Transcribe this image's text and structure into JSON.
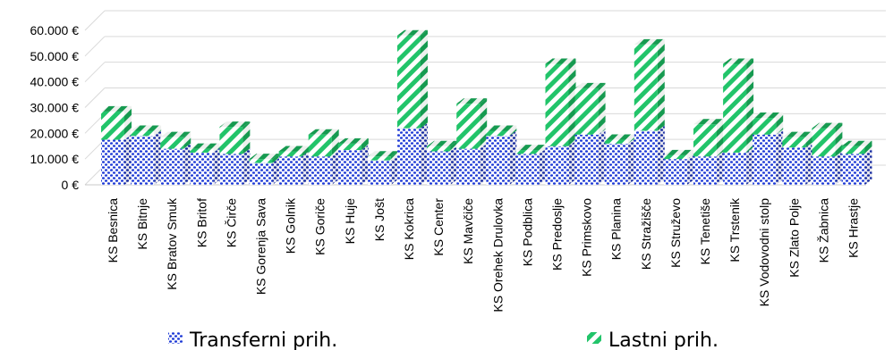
{
  "chart_data": {
    "type": "bar",
    "stacked": true,
    "three_d": true,
    "legend_position": "bottom",
    "grid": true,
    "ylim": [
      0,
      60000
    ],
    "ytick_values": [
      0,
      10000,
      20000,
      30000,
      40000,
      50000,
      60000
    ],
    "ytick_labels": [
      "0 €",
      "10.000 €",
      "20.000 €",
      "30.000 €",
      "40.000 €",
      "50.000 €",
      "60.000 €"
    ],
    "categories": [
      "KS Besnica",
      "KS Bitnje",
      "KS Bratov Smuk",
      "KS Britof",
      "KS Čirče",
      "KS Gorenja Sava",
      "KS Golnik",
      "KS Goriče",
      "KS Huje",
      "KS Jošt",
      "KS Kokrica",
      "KS Center",
      "KS Mavčiče",
      "KS Orehek Drulovka",
      "KS Podblica",
      "KS Predoslje",
      "KS Primskovo",
      "KS Planina",
      "KS Stražišče",
      "KS Struževo",
      "KS Tenetiše",
      "KS Trstenik",
      "KS Vodovodni stolp",
      "KS Zlato Polje",
      "KS Žabnica",
      "KS Hrastje"
    ],
    "series": [
      {
        "name": "Transferni prih.",
        "color": "#1f3bd6",
        "pattern": "dots",
        "values": [
          17500,
          19000,
          14000,
          12500,
          12000,
          8500,
          11000,
          11000,
          13500,
          9500,
          22000,
          13000,
          14000,
          19000,
          12000,
          15000,
          19500,
          16000,
          21000,
          10000,
          11000,
          12500,
          19500,
          14500,
          11000,
          12000
        ]
      },
      {
        "name": "Lastni prih.",
        "color": "#22c46a",
        "pattern": "stripes",
        "values": [
          11000,
          2000,
          4500,
          1500,
          10500,
          1500,
          2000,
          8500,
          2500,
          1500,
          36000,
          2000,
          17500,
          2000,
          1500,
          32000,
          18000,
          1500,
          33500,
          1500,
          12500,
          34500,
          6500,
          4000,
          11000,
          3000
        ]
      }
    ]
  }
}
